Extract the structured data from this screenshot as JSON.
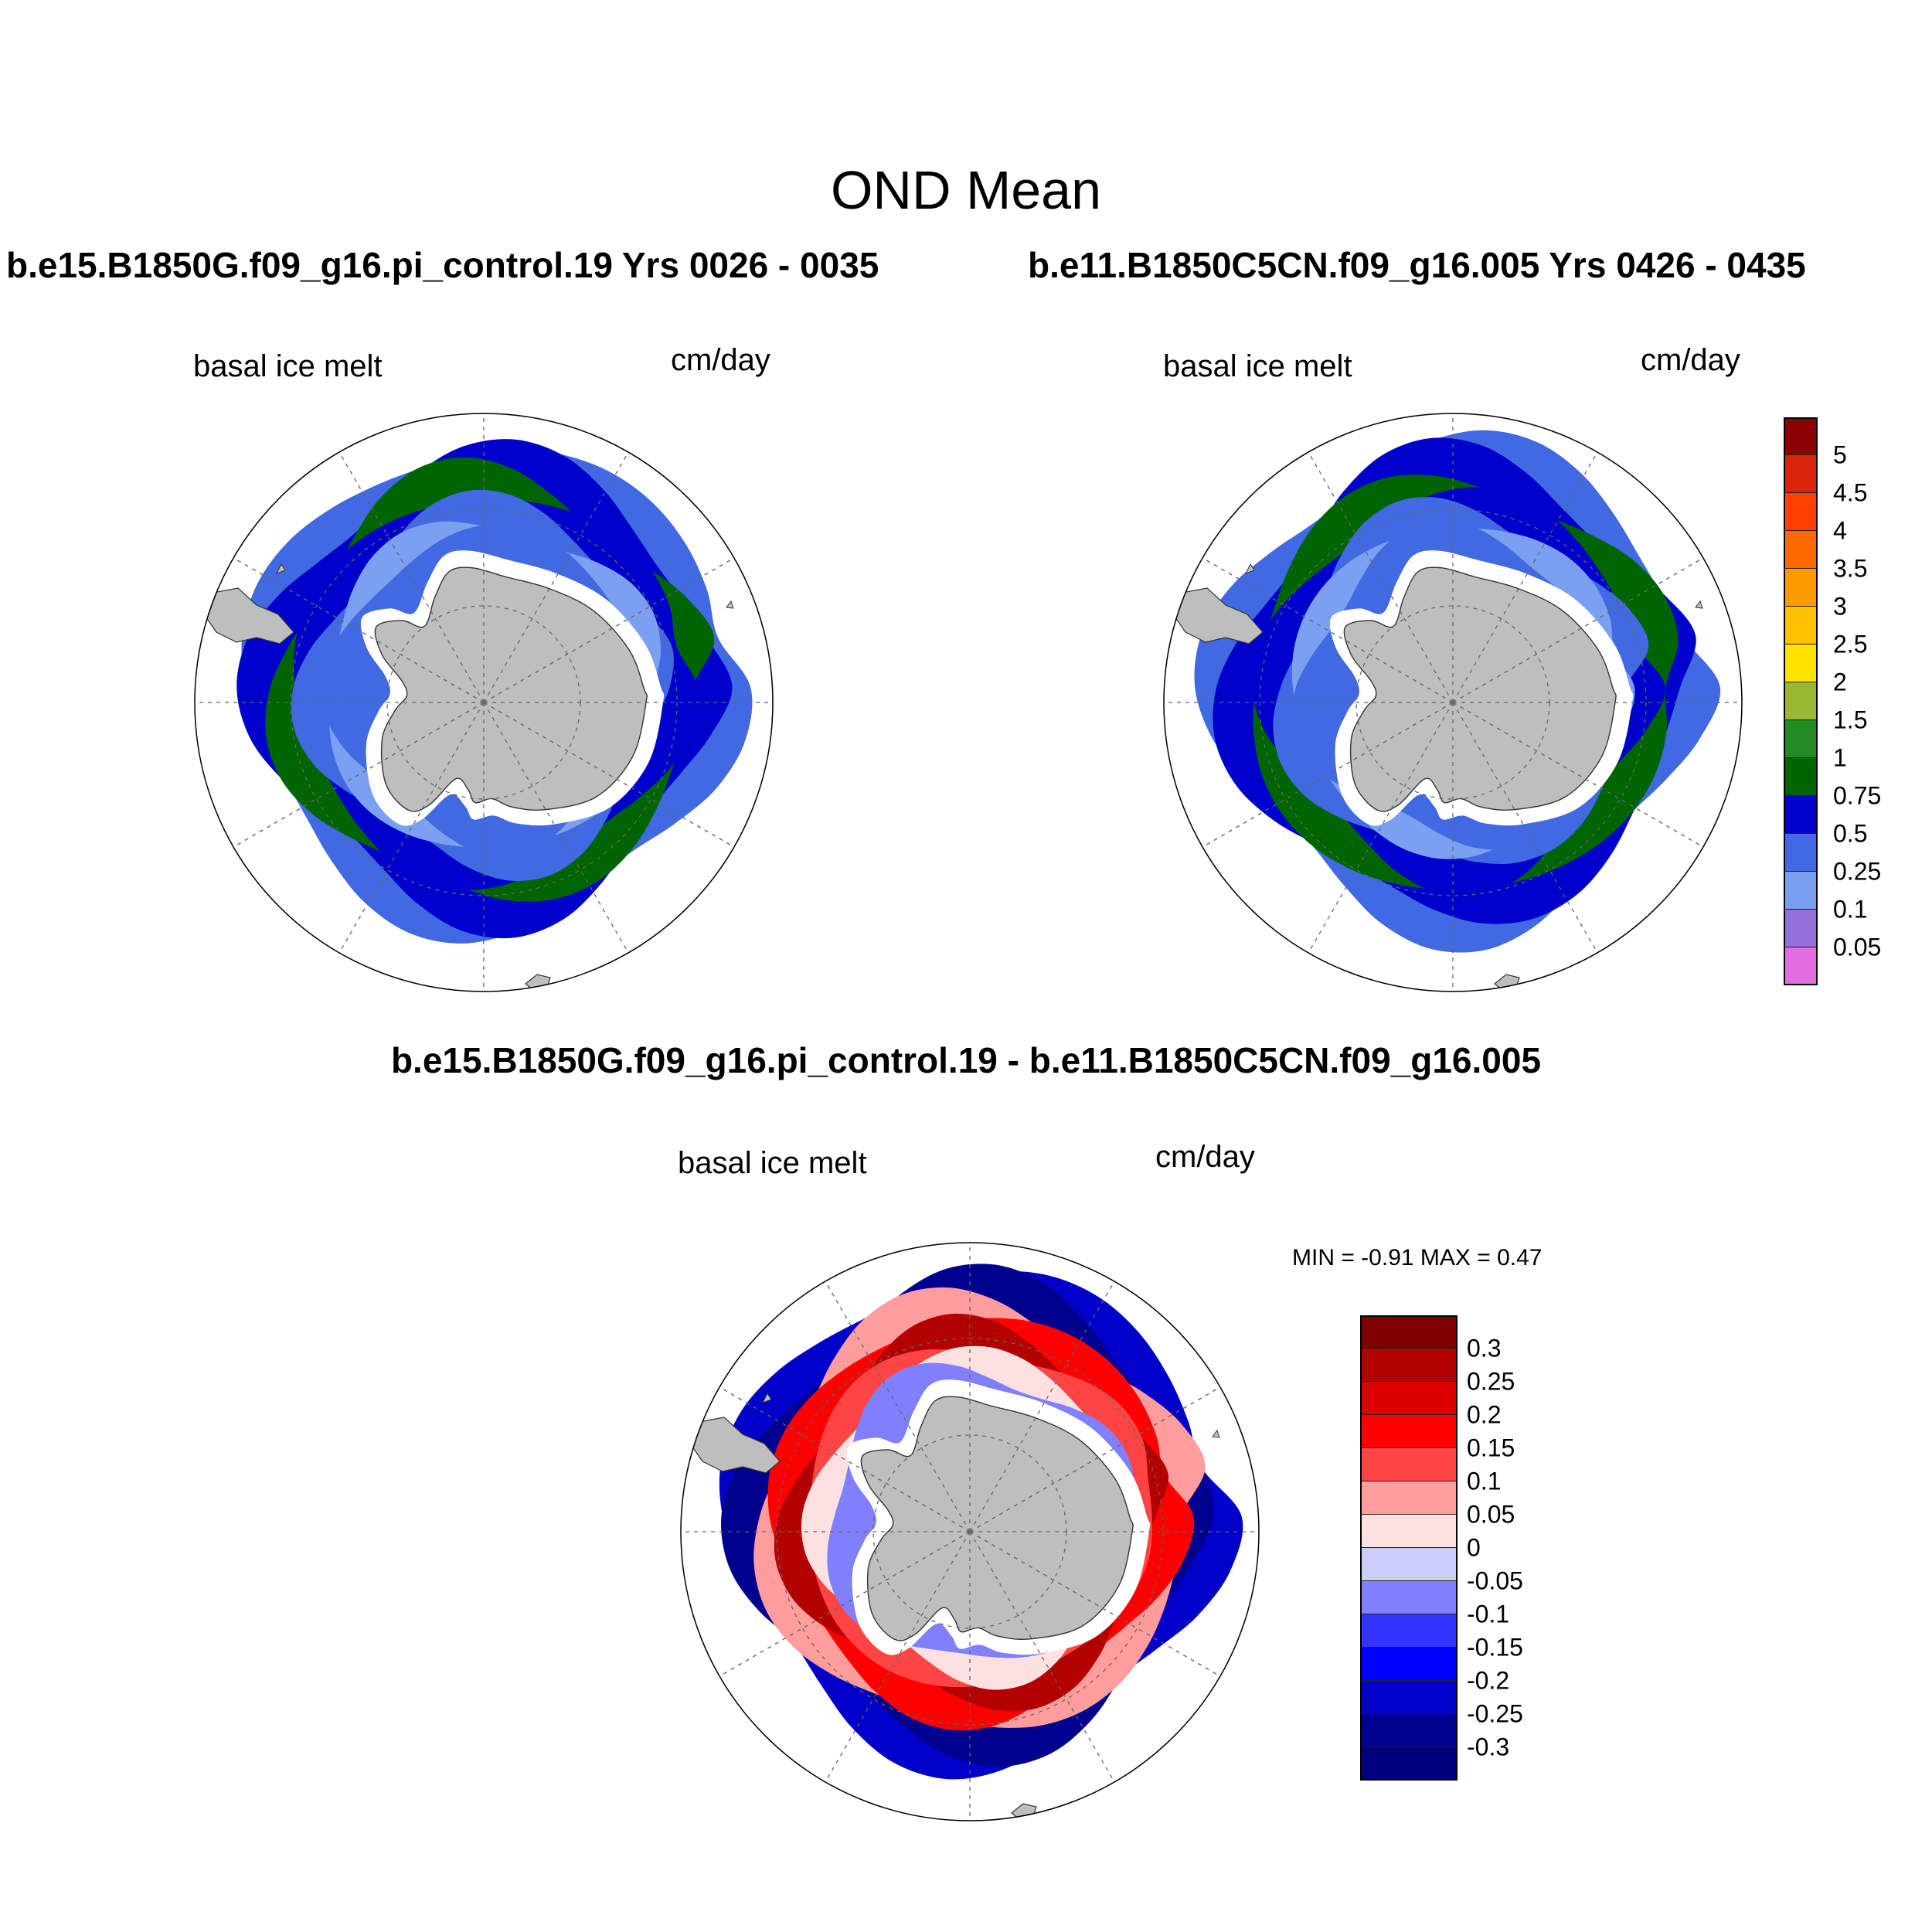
{
  "figure": {
    "title": "OND Mean",
    "diff_title": "b.e15.B1850G.f09_g16.pi_control.19 - b.e11.B1850C5CN.f09_g16.005",
    "minmax_text": "MIN =  -0.91 MAX =   0.47"
  },
  "panels": [
    {
      "case_title": "b.e15.B1850G.f09_g16.pi_control.19  Yrs 0026 - 0035",
      "left_label": "basal ice melt",
      "right_label": "cm/day"
    },
    {
      "case_title": "b.e11.B1850C5CN.f09_g16.005  Yrs 0426 - 0435",
      "left_label": "basal ice melt",
      "right_label": "cm/day"
    },
    {
      "left_label": "basal ice melt",
      "right_label": "cm/day"
    }
  ],
  "colors": {
    "land": "#bebebe",
    "abs_scale": [
      "#e36ee0",
      "#9370db",
      "#7b9ff1",
      "#4169e1",
      "#0000cd",
      "#006400",
      "#228b22",
      "#9ab734",
      "#ffe200",
      "#ffc100",
      "#ff9a00",
      "#ff6a00",
      "#ff4000",
      "#d9260b",
      "#8b0000"
    ],
    "diff_scale": [
      "#00007f",
      "#00008f",
      "#0000c8",
      "#0000ff",
      "#3333ff",
      "#8080ff",
      "#cdcdf9",
      "#fde1e1",
      "#ff9c9c",
      "#ff4444",
      "#ff0000",
      "#dd0000",
      "#b30000",
      "#800000"
    ]
  },
  "chart_data": {
    "type": "contour_map",
    "projection": "south polar stereographic",
    "variable": "basal ice melt",
    "units": "cm/day",
    "season": "OND",
    "abs_levels": [
      "0.05",
      "0.1",
      "0.25",
      "0.5",
      "0.75",
      "1",
      "1.5",
      "2",
      "2.5",
      "3",
      "3.5",
      "4",
      "4.5",
      "5"
    ],
    "diff_levels": [
      "-0.3",
      "-0.25",
      "-0.2",
      "-0.15",
      "-0.1",
      "-0.05",
      "0",
      "0.05",
      "0.1",
      "0.15",
      "0.2",
      "0.25",
      "0.3"
    ],
    "diff_min": -0.91,
    "diff_max": 0.47
  }
}
